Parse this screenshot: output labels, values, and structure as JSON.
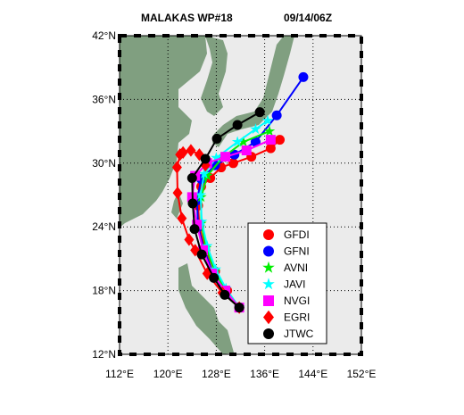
{
  "chart_data": {
    "type": "track",
    "title": "MALAKAS   WP#18",
    "subtitle": "09/14/06Z",
    "xlim": [
      112,
      152
    ],
    "ylim": [
      12,
      42
    ],
    "xticks": [
      {
        "value": 112,
        "label": "112°E"
      },
      {
        "value": 120,
        "label": "120°E"
      },
      {
        "value": 128,
        "label": "128°E"
      },
      {
        "value": 136,
        "label": "136°E"
      },
      {
        "value": 144,
        "label": "144°E"
      },
      {
        "value": 152,
        "label": "152°E"
      }
    ],
    "yticks": [
      {
        "value": 12,
        "label": "12°N"
      },
      {
        "value": 18,
        "label": "18°N"
      },
      {
        "value": 24,
        "label": "24°N"
      },
      {
        "value": 30,
        "label": "30°N"
      },
      {
        "value": 36,
        "label": "36°N"
      },
      {
        "value": 42,
        "label": "42°N"
      }
    ],
    "grid": true,
    "series": [
      {
        "name": "GFDI",
        "color": "#ff0000",
        "marker": "circle",
        "x": [
          131.8,
          129.8,
          127.8,
          126.2,
          125.2,
          125.0,
          125.5,
          127.0,
          128.8,
          130.8,
          133.8,
          137.0,
          138.5
        ],
        "values": [
          16.4,
          18.0,
          19.8,
          21.8,
          24.0,
          26.0,
          27.8,
          28.6,
          29.6,
          30.0,
          30.6,
          31.4,
          32.2
        ]
      },
      {
        "name": "GFNI",
        "color": "#0000ff",
        "marker": "circle",
        "x": [
          131.8,
          129.5,
          127.5,
          126.0,
          125.0,
          124.8,
          125.5,
          127.8,
          131.0,
          134.5,
          138.0,
          142.4
        ],
        "values": [
          16.4,
          17.8,
          19.6,
          21.8,
          24.0,
          26.5,
          28.5,
          29.8,
          30.8,
          32.0,
          34.5,
          38.1
        ]
      },
      {
        "name": "AVNI",
        "color": "#00ee00",
        "marker": "star",
        "x": [
          131.8,
          129.5,
          127.8,
          126.3,
          125.5,
          125.5,
          126.5,
          129.0,
          132.5,
          136.8
        ],
        "values": [
          16.4,
          18.0,
          19.8,
          22.0,
          24.3,
          26.8,
          28.8,
          30.5,
          32.0,
          33.0
        ]
      },
      {
        "name": "JAVI",
        "color": "#00ffff",
        "marker": "star",
        "x": [
          131.8,
          129.6,
          127.9,
          126.5,
          125.6,
          125.4,
          126.0,
          128.0,
          131.5,
          134.5,
          136.5
        ],
        "values": [
          16.4,
          18.2,
          20.0,
          22.2,
          24.5,
          27.0,
          29.0,
          30.5,
          32.0,
          33.2,
          34.0
        ]
      },
      {
        "name": "NVGI",
        "color": "#ff00ff",
        "marker": "square",
        "x": [
          131.8,
          129.5,
          127.3,
          125.8,
          124.8,
          124.0,
          124.5,
          126.5,
          129.5,
          133.0,
          137.0
        ],
        "values": [
          16.4,
          18.0,
          19.6,
          21.8,
          24.2,
          26.8,
          28.8,
          30.0,
          30.6,
          31.2,
          32.2
        ]
      },
      {
        "name": "EGRI",
        "color": "#ff0000",
        "marker": "diamond",
        "x": [
          131.8,
          129.0,
          126.5,
          124.5,
          123.5,
          122.3,
          121.6,
          121.5,
          122.0,
          122.5,
          123.8,
          125.2,
          126.2
        ],
        "values": [
          16.4,
          17.8,
          19.6,
          21.8,
          22.8,
          24.8,
          27.2,
          29.6,
          30.8,
          31.0,
          31.2,
          30.8,
          29.8
        ]
      },
      {
        "name": "JTWC",
        "color": "#000000",
        "marker": "circle",
        "x": [
          131.8,
          129.4,
          127.6,
          125.6,
          124.4,
          124.1,
          124.0,
          126.2,
          128.1,
          131.5,
          135.2
        ],
        "values": [
          16.4,
          17.6,
          19.2,
          21.4,
          23.8,
          26.2,
          28.6,
          30.4,
          32.3,
          33.6,
          34.8
        ]
      }
    ]
  }
}
